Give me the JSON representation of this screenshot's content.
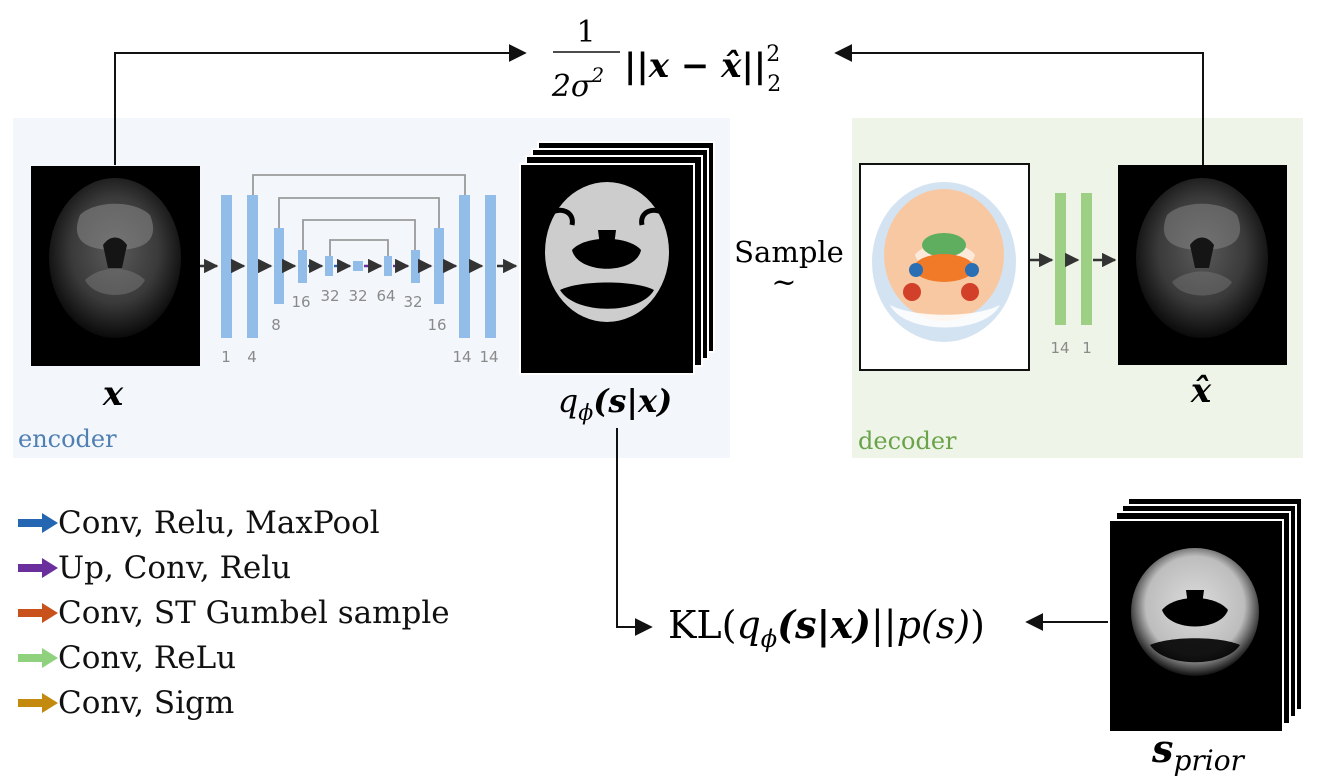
{
  "colors": {
    "encoder_bg": "#f3f6fb",
    "decoder_bg": "#eef5e8",
    "encoder_text": "#4f7fb3",
    "decoder_text": "#6aa34a",
    "unet_bar": "#92bde8",
    "decoder_bar": "#9dcf84",
    "link_gray": "#9a9a9a",
    "blue_arrow": "#2466b1",
    "purple_arrow": "#6a2f9c",
    "orange_arrow": "#c8511c",
    "green_arrow": "#8fd17d",
    "gold_arrow": "#c48a10"
  },
  "top_loss": {
    "numerator": "1",
    "denominator_base": "2σ",
    "denominator_exp": "2",
    "body": "||x − x̂||",
    "sub": "2",
    "sup": "2"
  },
  "encoder": {
    "label": "encoder",
    "input_label": "x",
    "output_label_main": "q",
    "output_label_sub": "ϕ",
    "output_label_args": "(s|x)",
    "channels": [
      "1",
      "4",
      "8",
      "16",
      "32",
      "32",
      "64",
      "32",
      "16",
      "14",
      "14"
    ]
  },
  "sample": {
    "word": "Sample",
    "symbol": "~"
  },
  "decoder": {
    "label": "decoder",
    "output_label": "x̂",
    "channels": [
      "14",
      "1"
    ]
  },
  "kl": {
    "prefix": "KL(",
    "q": "q",
    "q_sub": "ϕ",
    "q_args": "(s|x)",
    "sep": "||",
    "p": "p(s)",
    "suffix": ")"
  },
  "prior": {
    "label_main": "s",
    "label_sub": "prior"
  },
  "legend": [
    {
      "label": "Conv, Relu, MaxPool",
      "color": "#2466b1"
    },
    {
      "label": "Up, Conv, Relu",
      "color": "#6a2f9c"
    },
    {
      "label": "Conv, ST Gumbel sample",
      "color": "#c8511c"
    },
    {
      "label": "Conv, ReLu",
      "color": "#8fd17d"
    },
    {
      "label": "Conv, Sigm",
      "color": "#c48a10"
    }
  ]
}
